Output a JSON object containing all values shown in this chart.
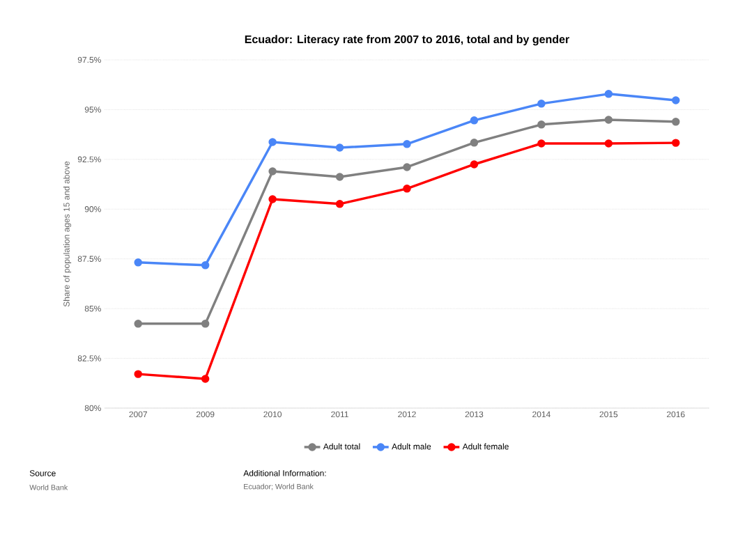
{
  "chart_data": {
    "type": "line",
    "title": "Ecuador: Literacy rate from 2007 to 2016, total and by gender",
    "ylabel": "Share of population ages 15 and above",
    "categories": [
      "2007",
      "2009",
      "2010",
      "2011",
      "2012",
      "2013",
      "2014",
      "2015",
      "2016"
    ],
    "series": [
      {
        "name": "Adult total",
        "color": "#808080",
        "values": [
          84.24,
          84.24,
          91.9,
          91.62,
          92.11,
          93.34,
          94.25,
          94.49,
          94.39
        ]
      },
      {
        "name": "Adult male",
        "color": "#4a86f7",
        "values": [
          87.32,
          87.18,
          93.37,
          93.09,
          93.27,
          94.46,
          95.3,
          95.79,
          95.47
        ]
      },
      {
        "name": "Adult female",
        "color": "#ff0000",
        "values": [
          81.71,
          81.47,
          90.5,
          90.26,
          91.03,
          92.25,
          93.3,
          93.3,
          93.33
        ]
      }
    ],
    "ylim": [
      80,
      97.5
    ],
    "yticks": [
      {
        "value": 80,
        "label": "80%"
      },
      {
        "value": 82.5,
        "label": "82.5%"
      },
      {
        "value": 85,
        "label": "85%"
      },
      {
        "value": 87.5,
        "label": "87.5%"
      },
      {
        "value": 90,
        "label": "90%"
      },
      {
        "value": 92.5,
        "label": "92.5%"
      },
      {
        "value": 95,
        "label": "95%"
      },
      {
        "value": 97.5,
        "label": "97.5%"
      }
    ],
    "grid": "y",
    "legend": "bottom",
    "marker": "circle",
    "line_style": "solid",
    "annotations": [
      "Source",
      "World Bank",
      "Additional Information:",
      "Ecuador; World Bank"
    ]
  }
}
